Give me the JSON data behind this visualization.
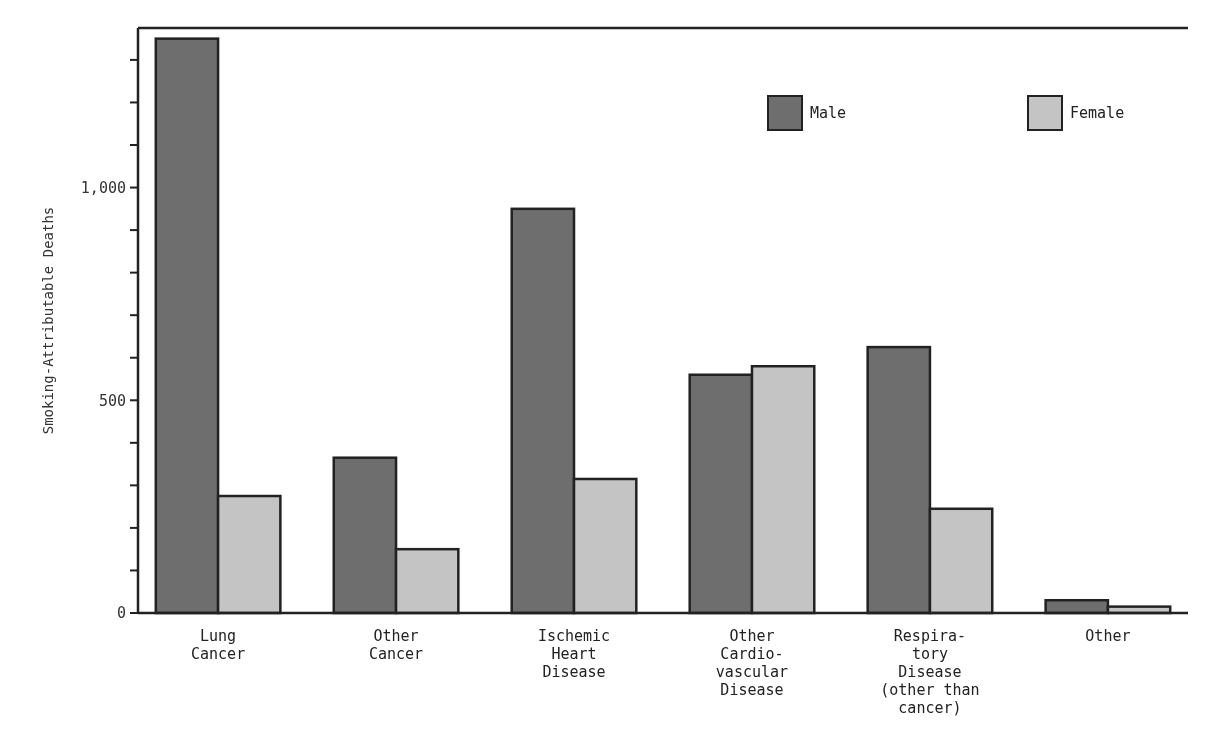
{
  "chart_data": {
    "type": "bar",
    "ylabel": "Smoking-Attributable Deaths",
    "categories": [
      "Lung\nCancer",
      "Other\nCancer",
      "Ischemic\nHeart\nDisease",
      "Other\nCardio-\nvascular\nDisease",
      "Respira-\ntory\nDisease\n(other than\ncancer)",
      "Other"
    ],
    "series": [
      {
        "name": "Male",
        "color": "#6e6e6e",
        "values": [
          1350,
          365,
          950,
          560,
          625,
          30
        ]
      },
      {
        "name": "Female",
        "color": "#c4c4c4",
        "values": [
          275,
          150,
          315,
          580,
          245,
          15
        ]
      }
    ],
    "ylim": [
      0,
      1375
    ],
    "yticks": [
      0,
      {
        "value": 100,
        "label": null
      },
      {
        "value": 200,
        "label": null
      },
      {
        "value": 300,
        "label": null
      },
      {
        "value": 400,
        "label": null
      },
      500,
      {
        "value": 600,
        "label": null
      },
      {
        "value": 700,
        "label": null
      },
      {
        "value": 800,
        "label": null
      },
      {
        "value": 900,
        "label": null
      },
      {
        "value": 1000,
        "label": "1,000"
      },
      {
        "value": 1100,
        "label": null
      },
      {
        "value": 1200,
        "label": null
      },
      {
        "value": 1300,
        "label": null
      }
    ],
    "legend": "top right"
  }
}
